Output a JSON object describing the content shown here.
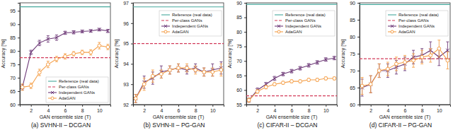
{
  "chart_data": [
    {
      "type": "line",
      "title": "(a) SVHN-II – DCGAN",
      "x_label": "GAN ensemble size (T)",
      "y_label": "Accuracy [%]",
      "x": [
        1,
        2,
        3,
        4,
        5,
        6,
        7,
        8,
        9,
        10,
        11
      ],
      "xlim": [
        0.7,
        11.3
      ],
      "xticks": [
        2,
        4,
        6,
        8,
        10
      ],
      "ylim": [
        60,
        98
      ],
      "yticks": [
        60,
        65,
        70,
        75,
        80,
        85,
        90,
        95
      ],
      "legend": "lower right",
      "series": [
        {
          "name": "Reference (real data)",
          "type": "hline",
          "color": "#45a89c",
          "line_style": "solid",
          "marker": "none",
          "value": 96.5
        },
        {
          "name": "Per-class GANs",
          "type": "hline",
          "color": "#d23c5b",
          "line_style": "dashed",
          "marker": "none",
          "value": 77.5
        },
        {
          "name": "Independent GANs",
          "type": "line",
          "color": "#6e3a78",
          "line_style": "solid",
          "marker": "x",
          "values": [
            66.5,
            79.5,
            83,
            84.5,
            85,
            86.8,
            87,
            87.3,
            87.5,
            88,
            87.5
          ],
          "errors": [
            1.0,
            0.8,
            1.0,
            1.2,
            1.0,
            0.6,
            0.6,
            0.5,
            0.5,
            0.5,
            0.6
          ]
        },
        {
          "name": "AdaGAN",
          "type": "line",
          "color": "#f5a04a",
          "line_style": "solid",
          "marker": "circle",
          "values": [
            66.5,
            67,
            72,
            75,
            77,
            78,
            79,
            79.5,
            79.5,
            82,
            81.5
          ],
          "errors": [
            1.2,
            1.0,
            1.2,
            1.2,
            1.0,
            1.0,
            0.8,
            0.8,
            1.0,
            1.2,
            1.0
          ]
        }
      ]
    },
    {
      "type": "line",
      "title": "(b) SVHN-II – PG-GAN",
      "x_label": "GAN ensemble size (T)",
      "y_label": "Accuracy [%]",
      "x": [
        1,
        2,
        3,
        4,
        5,
        6,
        7,
        8,
        9,
        10,
        11
      ],
      "xlim": [
        0.7,
        11.3
      ],
      "xticks": [
        2,
        4,
        6,
        8,
        10
      ],
      "ylim": [
        92,
        97
      ],
      "yticks": [
        92,
        93,
        94,
        95,
        96,
        97
      ],
      "legend": "upper right",
      "series": [
        {
          "name": "Reference (real data)",
          "type": "hline",
          "color": "#45a89c",
          "line_style": "solid",
          "marker": "none",
          "value": 96.8
        },
        {
          "name": "Per-class GANs",
          "type": "hline",
          "color": "#d23c5b",
          "line_style": "dashed",
          "marker": "none",
          "value": 95
        },
        {
          "name": "Independent GANs",
          "type": "line",
          "color": "#6e3a78",
          "line_style": "solid",
          "marker": "x",
          "values": [
            92.3,
            93.1,
            93.3,
            93.6,
            93.7,
            93.8,
            93.7,
            93.8,
            93.6,
            93.7,
            93.8
          ],
          "errors": [
            0.2,
            0.3,
            0.3,
            0.3,
            0.2,
            0.2,
            0.2,
            0.2,
            0.2,
            0.3,
            0.3
          ]
        },
        {
          "name": "AdaGAN",
          "type": "line",
          "color": "#f5a04a",
          "line_style": "solid",
          "marker": "circle",
          "values": [
            92.3,
            93.0,
            93.4,
            93.5,
            93.7,
            93.8,
            93.8,
            93.7,
            93.6,
            93.6,
            93.7
          ],
          "errors": [
            0.2,
            0.3,
            0.3,
            0.2,
            0.2,
            0.2,
            0.2,
            0.2,
            0.2,
            0.2,
            0.3
          ]
        }
      ]
    },
    {
      "type": "line",
      "title": "(c) CIFAR-II – DCGAN",
      "x_label": "GAN ensemble size (T)",
      "y_label": "Accuracy [%]",
      "x": [
        1,
        2,
        3,
        4,
        5,
        6,
        7,
        8,
        9,
        10,
        11
      ],
      "xlim": [
        0.7,
        11.3
      ],
      "xticks": [
        2,
        4,
        6,
        8,
        10
      ],
      "ylim": [
        55,
        90
      ],
      "yticks": [
        55,
        60,
        65,
        70,
        75,
        80,
        85,
        90
      ],
      "legend": "upper right",
      "series": [
        {
          "name": "Reference (real data)",
          "type": "hline",
          "color": "#45a89c",
          "line_style": "solid",
          "marker": "none",
          "value": 89.5
        },
        {
          "name": "Per-class GANs",
          "type": "hline",
          "color": "#d23c5b",
          "line_style": "dashed",
          "marker": "none",
          "value": 58
        },
        {
          "name": "Independent GANs",
          "type": "line",
          "color": "#6e3a78",
          "line_style": "solid",
          "marker": "x",
          "values": [
            56.5,
            60,
            62,
            64,
            65.5,
            66.5,
            67.5,
            68.5,
            69.5,
            70.5,
            71
          ],
          "errors": [
            0.7,
            0.7,
            0.6,
            0.7,
            0.6,
            0.6,
            0.6,
            0.6,
            0.6,
            0.6,
            0.6
          ]
        },
        {
          "name": "AdaGAN",
          "type": "line",
          "color": "#f5a04a",
          "line_style": "solid",
          "marker": "circle",
          "values": [
            56.5,
            59.5,
            61,
            62,
            62.5,
            63,
            63,
            63.5,
            63.5,
            64,
            64
          ],
          "errors": [
            0.7,
            0.6,
            0.6,
            0.5,
            0.5,
            0.5,
            0.5,
            0.5,
            0.5,
            0.5,
            0.5
          ]
        }
      ]
    },
    {
      "type": "line",
      "title": "(d) CIFAR-II – PG-GAN",
      "x_label": "GAN ensemble size (T)",
      "y_label": "Accuracy [%]",
      "x": [
        1,
        2,
        3,
        4,
        5,
        6,
        7,
        8,
        9,
        10,
        11
      ],
      "xlim": [
        0.7,
        11.3
      ],
      "xticks": [
        2,
        4,
        6,
        8,
        10
      ],
      "ylim": [
        60,
        90
      ],
      "yticks": [
        60,
        65,
        70,
        75,
        80,
        85,
        90
      ],
      "legend": "upper right",
      "series": [
        {
          "name": "Reference (real data)",
          "type": "hline",
          "color": "#45a89c",
          "line_style": "solid",
          "marker": "none",
          "value": 89.5
        },
        {
          "name": "Per-class GANs",
          "type": "hline",
          "color": "#d23c5b",
          "line_style": "dashed",
          "marker": "none",
          "value": 73.5
        },
        {
          "name": "Independent GANs",
          "type": "line",
          "color": "#6e3a78",
          "line_style": "solid",
          "marker": "x",
          "values": [
            65,
            66,
            70,
            70,
            71,
            72,
            74,
            74.5,
            76,
            74,
            76
          ],
          "errors": [
            2.5,
            2.5,
            2,
            2,
            2,
            2,
            2,
            2,
            2.5,
            2.5,
            2.5
          ]
        },
        {
          "name": "AdaGAN",
          "type": "line",
          "color": "#f5a04a",
          "line_style": "solid",
          "marker": "circle",
          "values": [
            65.5,
            66,
            70,
            70.5,
            72,
            72.5,
            73,
            74,
            74.5,
            76.5,
            73
          ],
          "errors": [
            2.5,
            2.5,
            2,
            2,
            2,
            2,
            2,
            2,
            2,
            2.5,
            2.5
          ]
        }
      ]
    }
  ]
}
